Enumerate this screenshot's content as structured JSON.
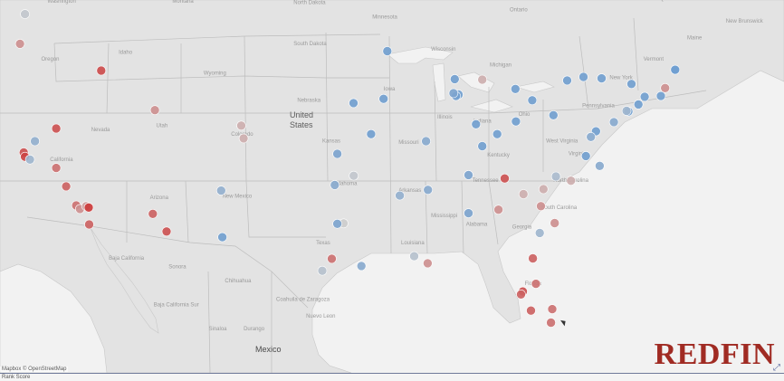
{
  "map": {
    "attribution": "Mapbox © OpenStreetMap",
    "brand_logo": "REDFIN",
    "status_text": "Rank Score",
    "colors": {
      "land": "#e3e3e3",
      "water": "#f2f2f2",
      "border": "#b9b9b9",
      "high": "#cc3535",
      "low": "#5b93cf"
    },
    "labels": {
      "country": [
        "United States",
        "Mexico"
      ],
      "states": [
        "Washington",
        "Oregon",
        "Idaho",
        "Montana",
        "Wyoming",
        "Nevada",
        "Utah",
        "Colorado",
        "California",
        "Arizona",
        "New Mexico",
        "North Dakota",
        "South Dakota",
        "Nebraska",
        "Kansas",
        "Oklahoma",
        "Texas",
        "Minnesota",
        "Iowa",
        "Missouri",
        "Arkansas",
        "Louisiana",
        "Wisconsin",
        "Illinois",
        "Michigan",
        "Indiana",
        "Ohio",
        "Kentucky",
        "Tennessee",
        "Mississippi",
        "Alabama",
        "Georgia",
        "Florida",
        "South Carolina",
        "North Carolina",
        "Virginia",
        "West Virginia",
        "Pennsylvania",
        "New York",
        "Maine",
        "Vermont",
        "Ontario",
        "Quebec",
        "New Brunswick",
        "Baja California",
        "Baja California Sur",
        "Sonora",
        "Chihuahua",
        "Coahuila de Zaragoza",
        "Durango",
        "Sinaloa",
        "Nuevo Leon"
      ]
    },
    "markers": [
      {
        "lon": -122.3,
        "lat": 47.6,
        "level": 0.45
      },
      {
        "lon": -122.7,
        "lat": 45.5,
        "level": 0.7
      },
      {
        "lon": -116.2,
        "lat": 43.6,
        "level": 0.92
      },
      {
        "lon": -111.9,
        "lat": 40.8,
        "level": 0.7
      },
      {
        "lon": -104.99,
        "lat": 39.7,
        "level": 0.6
      },
      {
        "lon": -104.8,
        "lat": 38.8,
        "level": 0.6
      },
      {
        "lon": -122.4,
        "lat": 37.8,
        "level": 0.9
      },
      {
        "lon": -122.3,
        "lat": 37.5,
        "level": 0.95
      },
      {
        "lon": -121.9,
        "lat": 37.3,
        "level": 0.3
      },
      {
        "lon": -121.5,
        "lat": 38.6,
        "level": 0.25
      },
      {
        "lon": -119.8,
        "lat": 36.7,
        "level": 0.8
      },
      {
        "lon": -119.8,
        "lat": 39.5,
        "level": 0.9
      },
      {
        "lon": -119.0,
        "lat": 35.4,
        "level": 0.85
      },
      {
        "lon": -118.2,
        "lat": 34.05,
        "level": 0.8
      },
      {
        "lon": -117.9,
        "lat": 33.8,
        "level": 0.7
      },
      {
        "lon": -117.4,
        "lat": 34.0,
        "level": 0.65
      },
      {
        "lon": -117.2,
        "lat": 33.9,
        "level": 0.98
      },
      {
        "lon": -117.16,
        "lat": 32.7,
        "level": 0.85
      },
      {
        "lon": -112.07,
        "lat": 33.45,
        "level": 0.85
      },
      {
        "lon": -110.97,
        "lat": 32.2,
        "level": 0.9
      },
      {
        "lon": -106.6,
        "lat": 35.1,
        "level": 0.25
      },
      {
        "lon": -106.5,
        "lat": 31.8,
        "level": 0.1
      },
      {
        "lon": -93.3,
        "lat": 44.98,
        "level": 0.1
      },
      {
        "lon": -93.6,
        "lat": 41.6,
        "level": 0.1
      },
      {
        "lon": -94.6,
        "lat": 39.1,
        "level": 0.1
      },
      {
        "lon": -97.3,
        "lat": 37.7,
        "level": 0.15
      },
      {
        "lon": -96.0,
        "lat": 41.3,
        "level": 0.1
      },
      {
        "lon": -97.5,
        "lat": 35.5,
        "level": 0.2
      },
      {
        "lon": -95.99,
        "lat": 36.15,
        "level": 0.45
      },
      {
        "lon": -92.3,
        "lat": 34.75,
        "level": 0.25
      },
      {
        "lon": -90.2,
        "lat": 38.6,
        "level": 0.2
      },
      {
        "lon": -90.05,
        "lat": 35.15,
        "level": 0.2
      },
      {
        "lon": -87.9,
        "lat": 43.0,
        "level": 0.1
      },
      {
        "lon": -87.6,
        "lat": 41.9,
        "level": 0.1
      },
      {
        "lon": -87.8,
        "lat": 41.8,
        "level": 0.1
      },
      {
        "lon": -88.0,
        "lat": 42.0,
        "level": 0.15
      },
      {
        "lon": -86.2,
        "lat": 39.8,
        "level": 0.1
      },
      {
        "lon": -85.7,
        "lat": 38.25,
        "level": 0.1
      },
      {
        "lon": -86.8,
        "lat": 36.2,
        "level": 0.15
      },
      {
        "lon": -86.8,
        "lat": 33.5,
        "level": 0.15
      },
      {
        "lon": -83.05,
        "lat": 42.3,
        "level": 0.1
      },
      {
        "lon": -85.7,
        "lat": 42.96,
        "level": 0.6
      },
      {
        "lon": -84.5,
        "lat": 39.1,
        "level": 0.1
      },
      {
        "lon": -83.0,
        "lat": 40.0,
        "level": 0.1
      },
      {
        "lon": -81.7,
        "lat": 41.5,
        "level": 0.1
      },
      {
        "lon": -80.0,
        "lat": 40.44,
        "level": 0.1
      },
      {
        "lon": -78.9,
        "lat": 42.9,
        "level": 0.1
      },
      {
        "lon": -77.6,
        "lat": 43.15,
        "level": 0.1
      },
      {
        "lon": -76.15,
        "lat": 43.05,
        "level": 0.1
      },
      {
        "lon": -73.76,
        "lat": 42.65,
        "level": 0.1
      },
      {
        "lon": -73.2,
        "lat": 41.2,
        "level": 0.1
      },
      {
        "lon": -72.7,
        "lat": 41.75,
        "level": 0.1
      },
      {
        "lon": -71.4,
        "lat": 41.8,
        "level": 0.1
      },
      {
        "lon": -71.06,
        "lat": 42.36,
        "level": 0.7
      },
      {
        "lon": -70.26,
        "lat": 43.66,
        "level": 0.05
      },
      {
        "lon": -74.0,
        "lat": 40.7,
        "level": 0.1
      },
      {
        "lon": -74.15,
        "lat": 40.75,
        "level": 0.3
      },
      {
        "lon": -75.16,
        "lat": 39.95,
        "level": 0.2
      },
      {
        "lon": -76.6,
        "lat": 39.3,
        "level": 0.1
      },
      {
        "lon": -77.0,
        "lat": 38.9,
        "level": 0.2
      },
      {
        "lon": -77.4,
        "lat": 37.55,
        "level": 0.1
      },
      {
        "lon": -76.3,
        "lat": 36.85,
        "level": 0.2
      },
      {
        "lon": -78.6,
        "lat": 35.8,
        "level": 0.6
      },
      {
        "lon": -79.8,
        "lat": 36.1,
        "level": 0.35
      },
      {
        "lon": -80.8,
        "lat": 35.2,
        "level": 0.6
      },
      {
        "lon": -81.0,
        "lat": 34.0,
        "level": 0.7
      },
      {
        "lon": -79.9,
        "lat": 32.8,
        "level": 0.7
      },
      {
        "lon": -82.4,
        "lat": 34.85,
        "level": 0.6
      },
      {
        "lon": -83.9,
        "lat": 35.96,
        "level": 0.9
      },
      {
        "lon": -84.4,
        "lat": 33.75,
        "level": 0.7
      },
      {
        "lon": -81.1,
        "lat": 32.1,
        "level": 0.3
      },
      {
        "lon": -81.65,
        "lat": 30.3,
        "level": 0.85
      },
      {
        "lon": -81.4,
        "lat": 28.5,
        "level": 0.8
      },
      {
        "lon": -82.45,
        "lat": 27.95,
        "level": 0.9
      },
      {
        "lon": -82.6,
        "lat": 27.75,
        "level": 0.85
      },
      {
        "lon": -81.8,
        "lat": 26.6,
        "level": 0.85
      },
      {
        "lon": -80.1,
        "lat": 26.7,
        "level": 0.8
      },
      {
        "lon": -80.2,
        "lat": 25.75,
        "level": 0.8
      },
      {
        "lon": -90.07,
        "lat": 29.95,
        "level": 0.7
      },
      {
        "lon": -91.15,
        "lat": 30.45,
        "level": 0.4
      },
      {
        "lon": -95.37,
        "lat": 29.76,
        "level": 0.2
      },
      {
        "lon": -96.8,
        "lat": 32.78,
        "level": 0.5
      },
      {
        "lon": -97.3,
        "lat": 32.75,
        "level": 0.15
      },
      {
        "lon": -97.74,
        "lat": 30.27,
        "level": 0.8
      },
      {
        "lon": -98.5,
        "lat": 29.42,
        "level": 0.4
      }
    ]
  }
}
